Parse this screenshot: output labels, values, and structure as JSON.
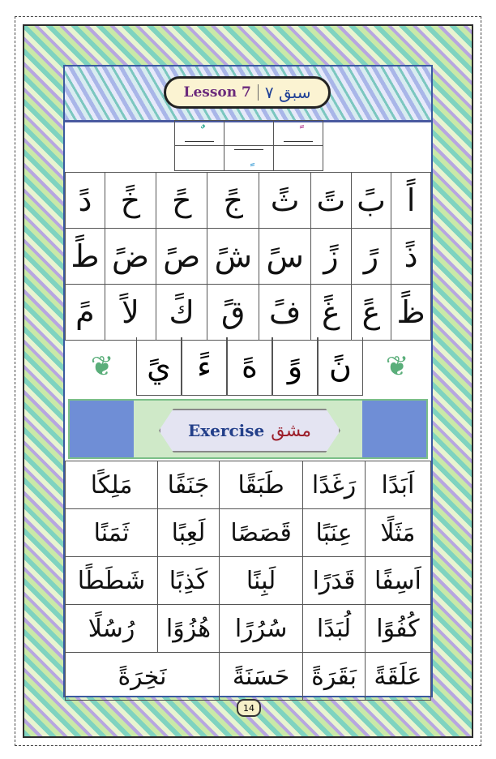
{
  "header": {
    "title_en": "Lesson 7",
    "title_ur": "سبق ۷"
  },
  "marks": {
    "dammatain": "ٌ",
    "fathatain": "ً",
    "kasratain": "ٍ"
  },
  "letters": [
    [
      "اً",
      "بً",
      "تً",
      "ثً",
      "جً",
      "حً",
      "خً",
      "دً"
    ],
    [
      "ذً",
      "رً",
      "زً",
      "سً",
      "شً",
      "صً",
      "ضً",
      "طً"
    ],
    [
      "ظً",
      "عً",
      "غً",
      "فً",
      "قً",
      "كً",
      "لاً",
      "مً"
    ]
  ],
  "letters_row4": [
    "نً",
    "وً",
    "هً",
    "ءً",
    "يً"
  ],
  "exercise": {
    "title_en": "Exercise",
    "title_ur": "مشق"
  },
  "words": [
    [
      "اَبَدًا",
      "رَغَدًا",
      "طَبَقًا",
      "جَنَفًا",
      "مَلِكًا"
    ],
    [
      "مَثَلًا",
      "عِنَبًا",
      "قَصَصًا",
      "لَعِبًا",
      "ثَمَنًا"
    ],
    [
      "اَسِفًا",
      "قَدَرًا",
      "لَبِنًا",
      "كَذِبًا",
      "شَطَطًا"
    ],
    [
      "كُفُوًا",
      "لُبَدًا",
      "سُرُرًا",
      "هُزُوًا",
      "رُسُلًا"
    ],
    [
      "عَلَقَةً",
      "بَقَرَةً",
      "حَسَنَةً",
      "نَخِرَةً"
    ]
  ],
  "page_number": "14",
  "colors": {
    "fatha": "#b0318c",
    "kasra": "#1f8fd0",
    "damma": "#1aa088",
    "title_en": "#6b2a7c",
    "title_ur": "#1e3f96"
  }
}
